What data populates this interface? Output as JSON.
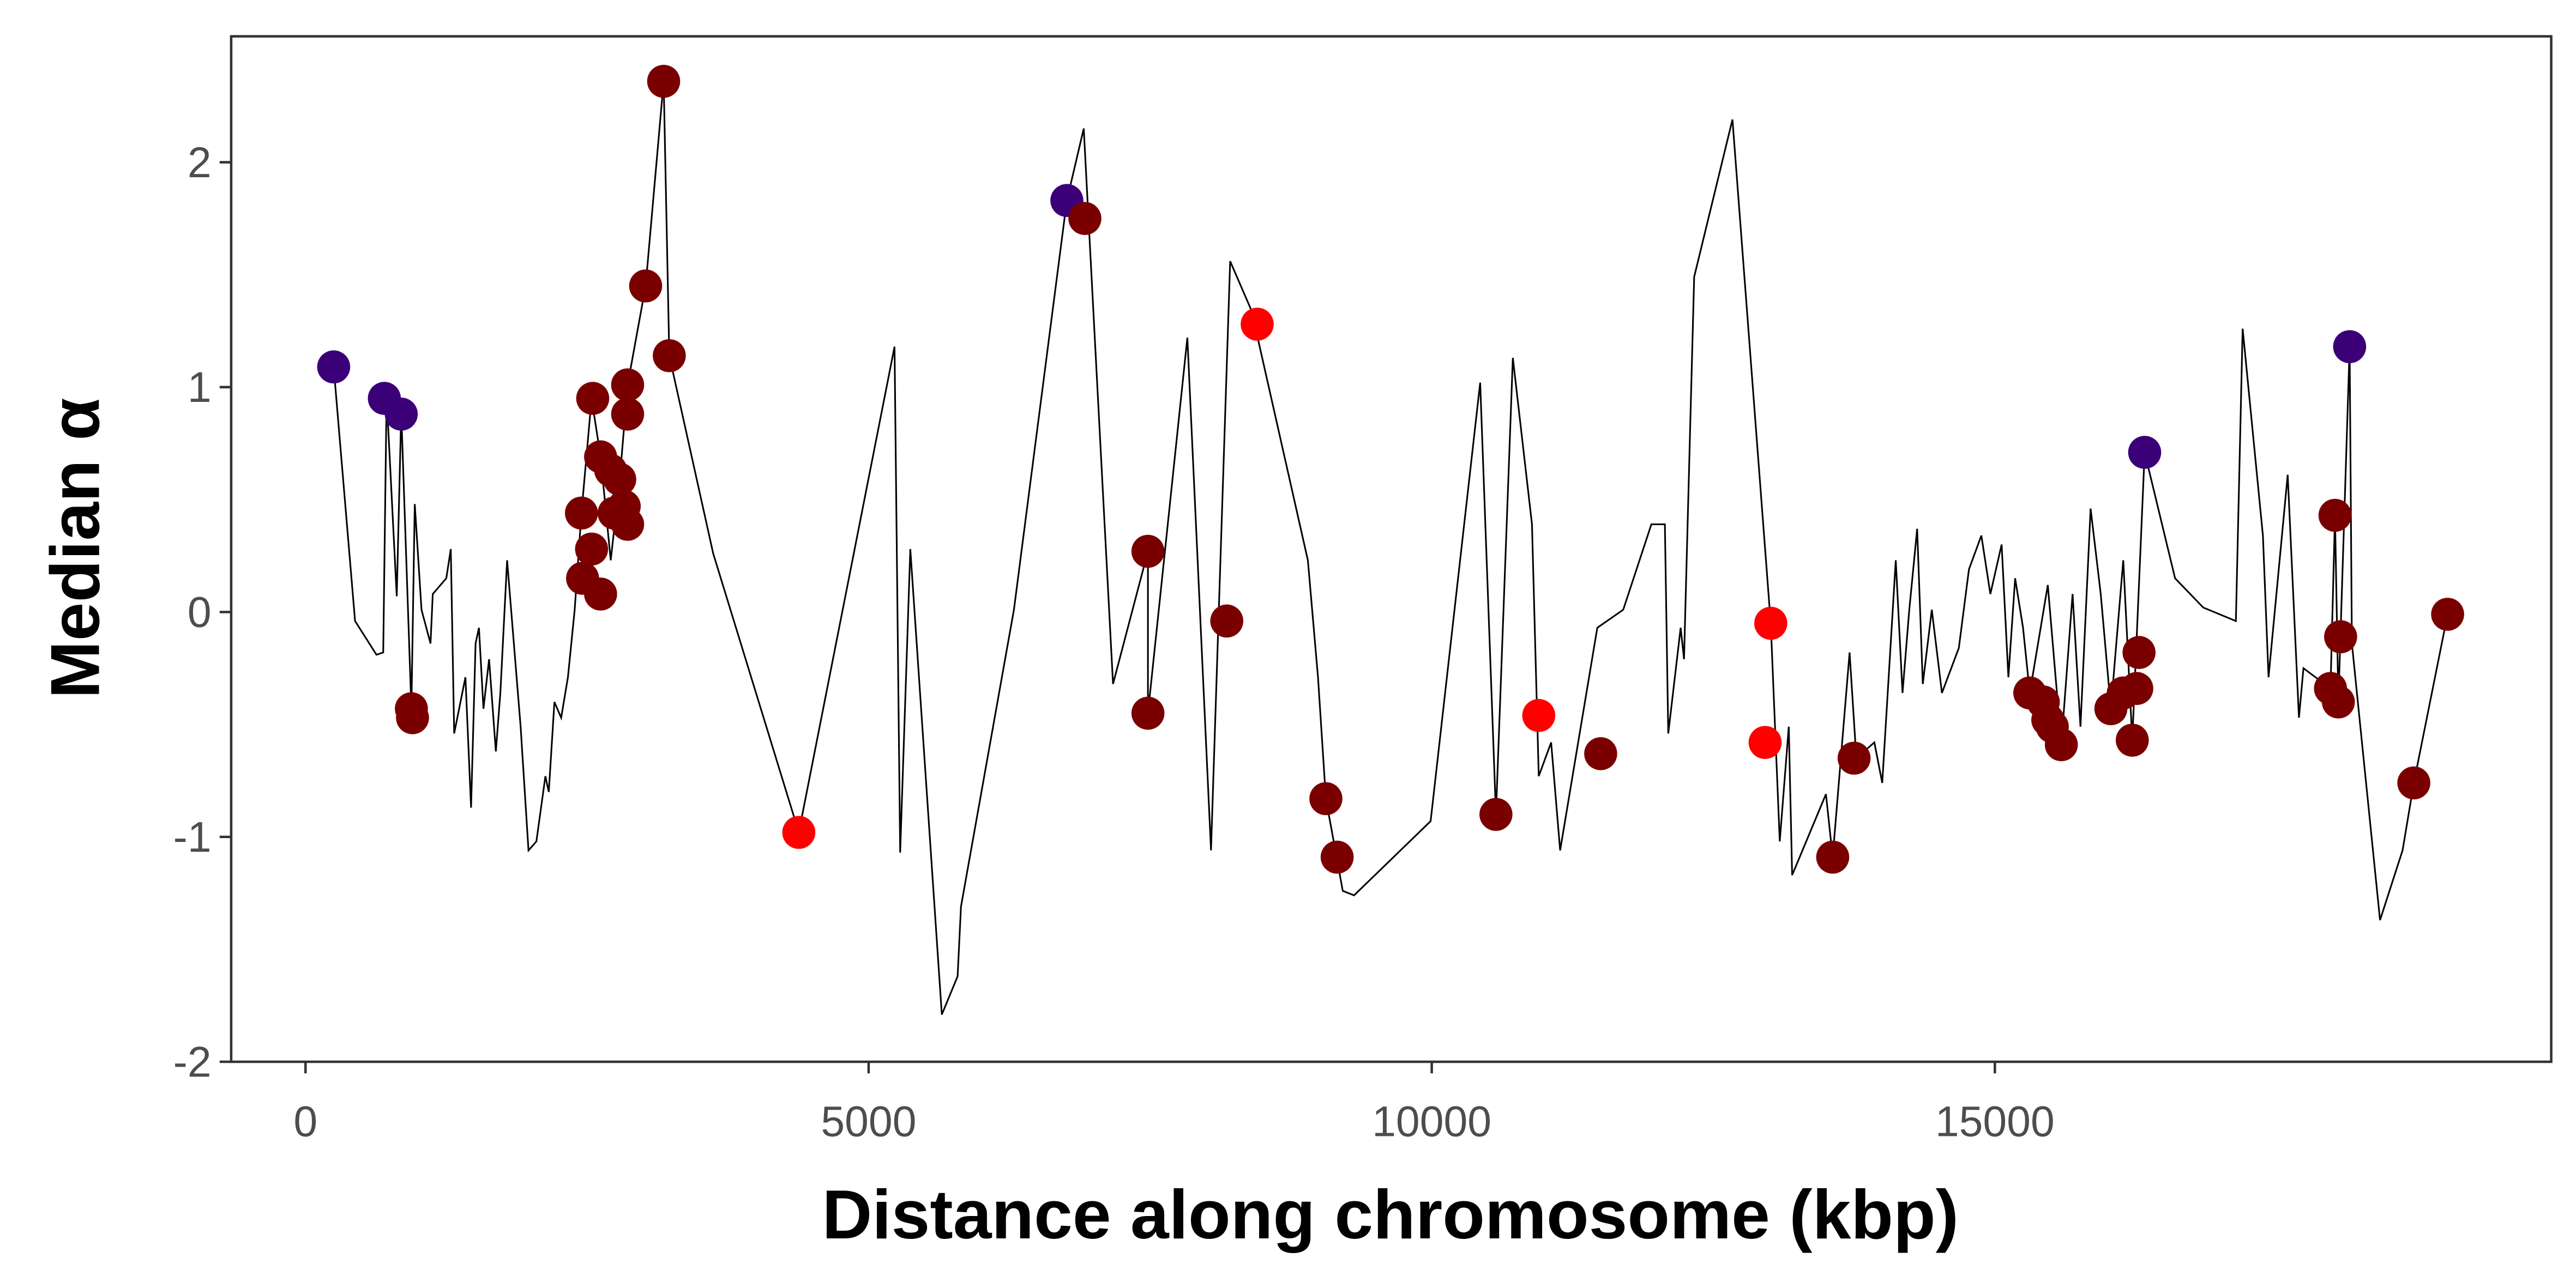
{
  "chart_data": {
    "type": "line",
    "x_label": "Distance along chromosome (kbp)",
    "y_label": "Median α",
    "xlim": [
      -660,
      19940
    ],
    "ylim": [
      -2,
      2.56
    ],
    "xticks": [
      0,
      5000,
      10000,
      15000
    ],
    "yticks": [
      -2,
      -1,
      0,
      1,
      2
    ],
    "grid": false,
    "series": [
      {
        "type": "line",
        "color": "#000000",
        "x": [
          250,
          440,
          630,
          690,
          720,
          810,
          850,
          940,
          970,
          1030,
          1110,
          1130,
          1250,
          1290,
          1320,
          1420,
          1470,
          1510,
          1540,
          1580,
          1630,
          1690,
          1730,
          1790,
          1910,
          1980,
          2050,
          2130,
          2160,
          2210,
          2270,
          2330,
          2390,
          2450,
          2540,
          2620,
          2710,
          2790,
          2860,
          3020,
          3180,
          3230,
          3620,
          4380,
          5230,
          5280,
          5370,
          5650,
          5790,
          5820,
          6290,
          6760,
          6910,
          7170,
          7480,
          7480,
          7830,
          8040,
          8210,
          8400,
          8900,
          8990,
          9060,
          9210,
          9310,
          9990,
          10430,
          10570,
          10720,
          10890,
          10950,
          11060,
          11140,
          11470,
          11700,
          11950,
          12070,
          12100,
          12210,
          12240,
          12330,
          12670,
          13010,
          13090,
          13170,
          13200,
          13500,
          13560,
          13710,
          13770,
          13930,
          14000,
          14120,
          14180,
          14240,
          14310,
          14360,
          14440,
          14530,
          14680,
          14770,
          14880,
          14960,
          15060,
          15120,
          15180,
          15250,
          15310,
          15470,
          15590,
          15690,
          15760,
          15850,
          15940,
          16030,
          16140,
          16220,
          16330,
          16600,
          16850,
          17140,
          17200,
          17380,
          17430,
          17600,
          17700,
          17740,
          17980,
          18020,
          18050,
          18150,
          18170,
          18420,
          18620,
          18720,
          19020
        ],
        "values": [
          1.09,
          -0.04,
          -0.19,
          -0.18,
          0.96,
          0.07,
          0.89,
          -0.43,
          0.48,
          0.01,
          -0.14,
          0.08,
          0.15,
          0.28,
          -0.54,
          -0.29,
          -0.87,
          -0.14,
          -0.07,
          -0.43,
          -0.21,
          -0.62,
          -0.36,
          0.23,
          -0.51,
          -1.06,
          -1.02,
          -0.73,
          -0.8,
          -0.4,
          -0.47,
          -0.29,
          0.01,
          0.44,
          0.95,
          0.69,
          0.23,
          0.59,
          1.01,
          1.45,
          2.36,
          1.14,
          0.26,
          -0.98,
          1.18,
          -1.07,
          0.28,
          -1.79,
          -1.62,
          -1.31,
          0.01,
          1.83,
          2.15,
          -0.32,
          0.27,
          -0.45,
          1.22,
          -1.06,
          1.56,
          1.34,
          0.23,
          -0.29,
          -0.83,
          -1.24,
          -1.26,
          -0.93,
          1.02,
          -0.9,
          1.13,
          0.39,
          -0.73,
          -0.58,
          -1.06,
          -0.07,
          0.01,
          0.39,
          0.39,
          -0.54,
          -0.07,
          -0.21,
          1.49,
          2.19,
          -0.05,
          -1.02,
          -0.51,
          -1.17,
          -0.81,
          -1.09,
          -0.18,
          -0.65,
          -0.58,
          -0.76,
          0.23,
          -0.36,
          0.01,
          0.37,
          -0.32,
          0.01,
          -0.36,
          -0.16,
          0.19,
          0.34,
          0.08,
          0.3,
          -0.29,
          0.15,
          -0.07,
          -0.36,
          0.12,
          -0.59,
          0.08,
          -0.51,
          0.46,
          0.08,
          -0.43,
          0.23,
          -0.57,
          0.71,
          0.15,
          0.02,
          -0.04,
          1.26,
          0.34,
          -0.29,
          0.61,
          -0.47,
          -0.25,
          -0.34,
          0.43,
          -0.4,
          1.18,
          -0.14,
          -1.37,
          -1.06,
          -0.76,
          -0.01
        ]
      },
      {
        "type": "scatter",
        "color": "#3b0077",
        "x": [
          250,
          700,
          850,
          6760,
          16330,
          18150
        ],
        "values": [
          1.09,
          0.95,
          0.88,
          1.83,
          0.71,
          1.18
        ]
      },
      {
        "type": "scatter",
        "color": "#7a0000",
        "x": [
          940,
          950,
          2450,
          2460,
          2540,
          2550,
          2620,
          2620,
          2710,
          2740,
          2790,
          2830,
          2860,
          2860,
          2860,
          3020,
          3180,
          3230,
          6920,
          7480,
          7480,
          8180,
          9060,
          9160,
          10570,
          11500,
          13560,
          13750,
          15310,
          15430,
          15470,
          15510,
          15590,
          16030,
          16140,
          16260,
          16220,
          16280,
          17980,
          18020,
          18050,
          18070,
          18720,
          19020
        ],
        "values": [
          -0.43,
          -0.47,
          0.44,
          0.15,
          0.28,
          0.95,
          0.69,
          0.08,
          0.63,
          0.44,
          0.59,
          0.47,
          1.01,
          0.88,
          0.39,
          1.45,
          2.36,
          1.14,
          1.75,
          0.27,
          -0.45,
          -0.04,
          -0.83,
          -1.09,
          -0.9,
          -0.63,
          -1.09,
          -0.65,
          -0.36,
          -0.4,
          -0.48,
          -0.51,
          -0.59,
          -0.43,
          -0.36,
          -0.34,
          -0.57,
          -0.18,
          -0.34,
          0.43,
          -0.4,
          -0.11,
          -0.76,
          -0.01
        ]
      },
      {
        "type": "scatter",
        "color": "#ff0000",
        "x": [
          4380,
          8450,
          10950,
          13010,
          12960
        ],
        "values": [
          -0.98,
          1.28,
          -0.46,
          -0.05,
          -0.58
        ]
      }
    ]
  }
}
